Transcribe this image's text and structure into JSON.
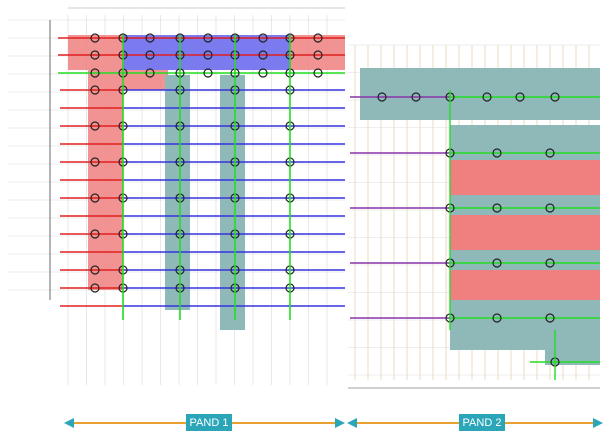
{
  "sections": [
    {
      "label": "PAND 1"
    },
    {
      "label": "PAND 2"
    }
  ]
}
